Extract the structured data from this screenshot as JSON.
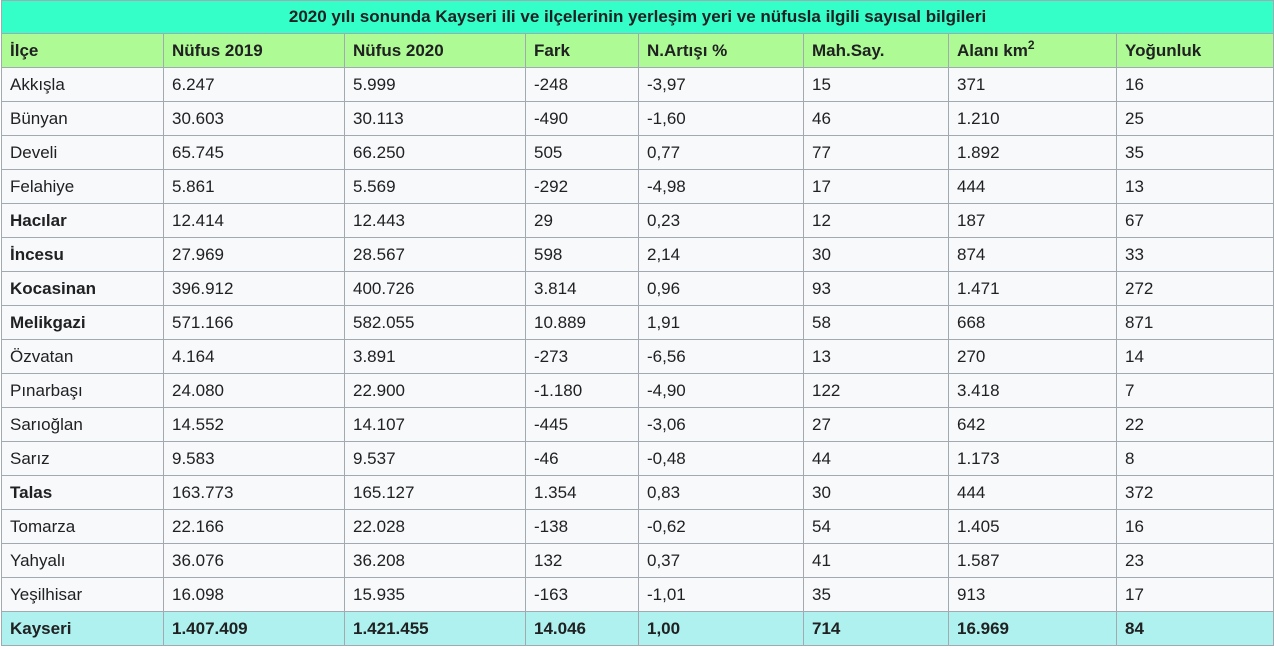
{
  "caption": "2020 yılı sonunda Kayseri ili ve ilçelerinin yerleşim yeri ve nüfusla ilgili sayısal bilgileri",
  "colors": {
    "caption_bg": "#34ffc9",
    "header_bg": "#aefa94",
    "row_bg": "#f8f9fa",
    "total_bg": "#aff1ef",
    "border": "#a2a9b1"
  },
  "headers": {
    "ilce": "İlçe",
    "nufus2019": "Nüfus 2019",
    "nufus2020": "Nüfus 2020",
    "fark": "Fark",
    "artis": "N.Artışı %",
    "mah": "Mah.Say.",
    "alan": "Alanı  km",
    "alan_sup": "2",
    "yogunluk": "Yoğunluk"
  },
  "rows": [
    {
      "ilce": "Akkışla",
      "bold": false,
      "n2019": "6.247",
      "n2020": "5.999",
      "fark": "-248",
      "artis": "-3,97",
      "mah": "15",
      "alan": "371",
      "yog": "16"
    },
    {
      "ilce": "Bünyan",
      "bold": false,
      "n2019": "30.603",
      "n2020": "30.113",
      "fark": "-490",
      "artis": "-1,60",
      "mah": "46",
      "alan": "1.210",
      "yog": "25"
    },
    {
      "ilce": "Develi",
      "bold": false,
      "n2019": "65.745",
      "n2020": "66.250",
      "fark": "505",
      "artis": "0,77",
      "mah": "77",
      "alan": "1.892",
      "yog": "35"
    },
    {
      "ilce": "Felahiye",
      "bold": false,
      "n2019": "5.861",
      "n2020": "5.569",
      "fark": "-292",
      "artis": "-4,98",
      "mah": "17",
      "alan": "444",
      "yog": "13"
    },
    {
      "ilce": "Hacılar",
      "bold": true,
      "n2019": "12.414",
      "n2020": "12.443",
      "fark": "29",
      "artis": "0,23",
      "mah": "12",
      "alan": "187",
      "yog": "67"
    },
    {
      "ilce": "İncesu",
      "bold": true,
      "n2019": "27.969",
      "n2020": "28.567",
      "fark": "598",
      "artis": "2,14",
      "mah": "30",
      "alan": "874",
      "yog": "33"
    },
    {
      "ilce": "Kocasinan",
      "bold": true,
      "n2019": "396.912",
      "n2020": "400.726",
      "fark": "3.814",
      "artis": "0,96",
      "mah": "93",
      "alan": "1.471",
      "yog": "272"
    },
    {
      "ilce": "Melikgazi",
      "bold": true,
      "n2019": "571.166",
      "n2020": "582.055",
      "fark": "10.889",
      "artis": "1,91",
      "mah": "58",
      "alan": "668",
      "yog": "871"
    },
    {
      "ilce": "Özvatan",
      "bold": false,
      "n2019": "4.164",
      "n2020": "3.891",
      "fark": "-273",
      "artis": "-6,56",
      "mah": "13",
      "alan": "270",
      "yog": "14"
    },
    {
      "ilce": "Pınarbaşı",
      "bold": false,
      "n2019": "24.080",
      "n2020": "22.900",
      "fark": "-1.180",
      "artis": "-4,90",
      "mah": "122",
      "alan": "3.418",
      "yog": "7"
    },
    {
      "ilce": "Sarıoğlan",
      "bold": false,
      "n2019": "14.552",
      "n2020": "14.107",
      "fark": "-445",
      "artis": "-3,06",
      "mah": "27",
      "alan": "642",
      "yog": "22"
    },
    {
      "ilce": "Sarız",
      "bold": false,
      "n2019": "9.583",
      "n2020": "9.537",
      "fark": "-46",
      "artis": "-0,48",
      "mah": "44",
      "alan": "1.173",
      "yog": "8"
    },
    {
      "ilce": "Talas",
      "bold": true,
      "n2019": "163.773",
      "n2020": "165.127",
      "fark": "1.354",
      "artis": "0,83",
      "mah": "30",
      "alan": "444",
      "yog": "372"
    },
    {
      "ilce": "Tomarza",
      "bold": false,
      "n2019": "22.166",
      "n2020": "22.028",
      "fark": "-138",
      "artis": "-0,62",
      "mah": "54",
      "alan": "1.405",
      "yog": "16"
    },
    {
      "ilce": "Yahyalı",
      "bold": false,
      "n2019": "36.076",
      "n2020": "36.208",
      "fark": "132",
      "artis": "0,37",
      "mah": "41",
      "alan": "1.587",
      "yog": "23"
    },
    {
      "ilce": "Yeşilhisar",
      "bold": false,
      "n2019": "16.098",
      "n2020": "15.935",
      "fark": "-163",
      "artis": "-1,01",
      "mah": "35",
      "alan": "913",
      "yog": "17"
    }
  ],
  "total": {
    "ilce": "Kayseri",
    "n2019": "1.407.409",
    "n2020": "1.421.455",
    "fark": "14.046",
    "artis": "1,00",
    "mah": "714",
    "alan": "16.969",
    "yog": "84"
  }
}
